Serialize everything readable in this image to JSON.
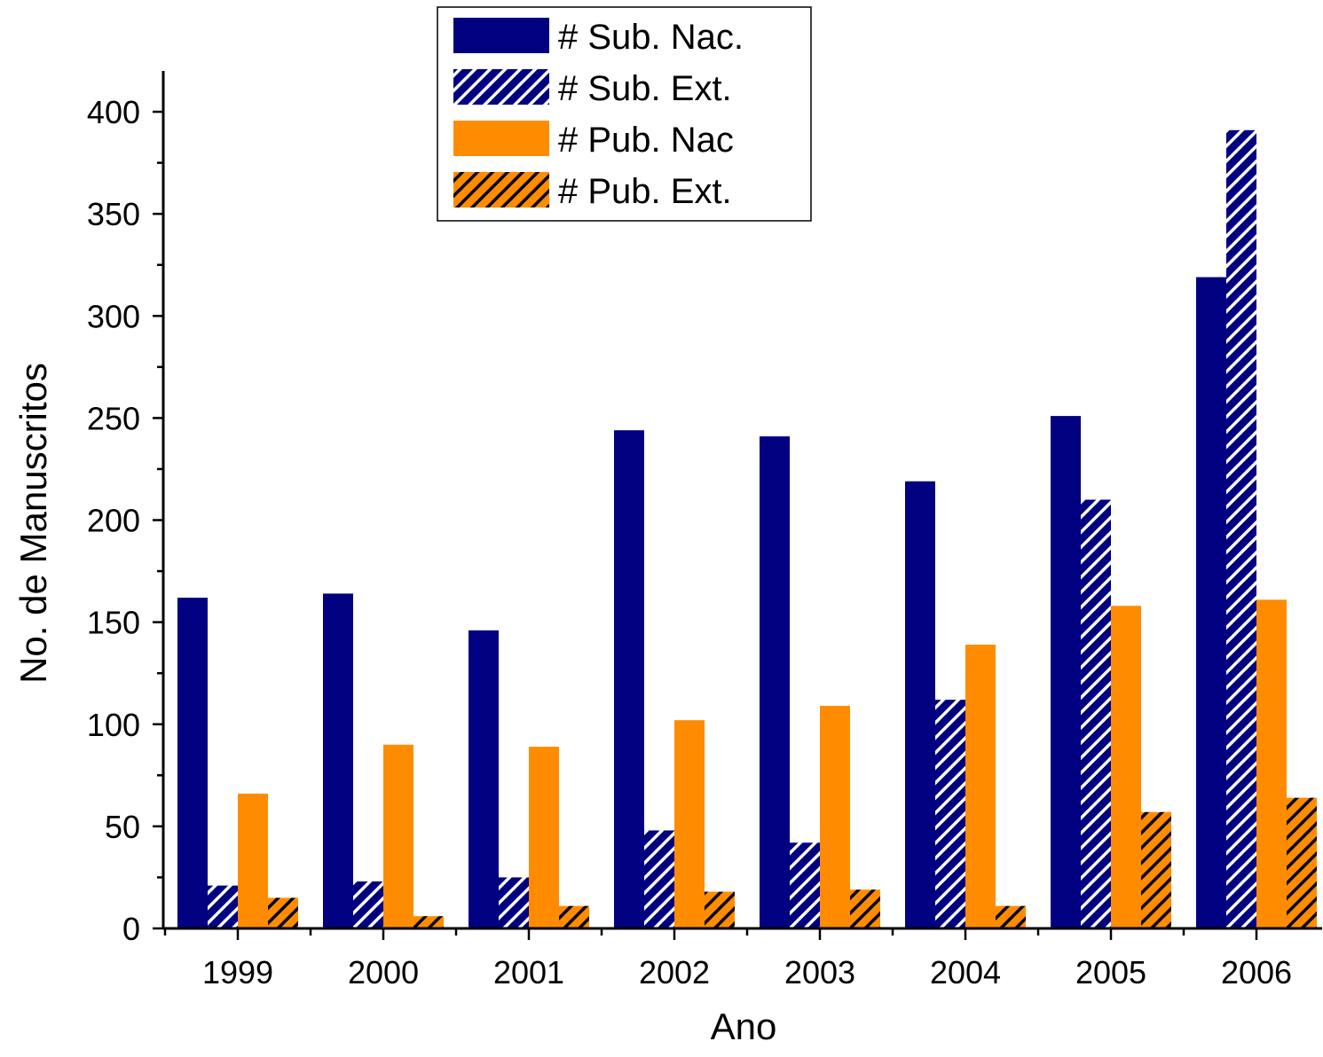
{
  "chart_data": {
    "type": "bar",
    "title": "",
    "xlabel": "Ano",
    "ylabel": "No. de Manuscritos",
    "categories": [
      "1999",
      "2000",
      "2001",
      "2002",
      "2003",
      "2004",
      "2005",
      "2006"
    ],
    "ylim": [
      0,
      420
    ],
    "yticks": [
      "0",
      "50",
      "100",
      "150",
      "200",
      "250",
      "300",
      "350",
      "400"
    ],
    "legend_position": "top-center",
    "grid": false,
    "series": [
      {
        "name": "# Sub. Nac.",
        "color": "#000080",
        "pattern": "solid",
        "values": [
          162,
          164,
          146,
          244,
          241,
          219,
          251,
          319
        ]
      },
      {
        "name": "# Sub. Ext.",
        "color": "#000080",
        "pattern": "hatch-white",
        "values": [
          21,
          23,
          25,
          48,
          42,
          112,
          210,
          391
        ]
      },
      {
        "name": "# Pub. Nac",
        "color": "#FF8C00",
        "pattern": "solid",
        "values": [
          66,
          90,
          89,
          102,
          109,
          139,
          158,
          161
        ]
      },
      {
        "name": "# Pub. Ext.",
        "color": "#FF8C00",
        "pattern": "hatch-black",
        "values": [
          15,
          6,
          11,
          18,
          19,
          11,
          57,
          64
        ]
      }
    ]
  }
}
